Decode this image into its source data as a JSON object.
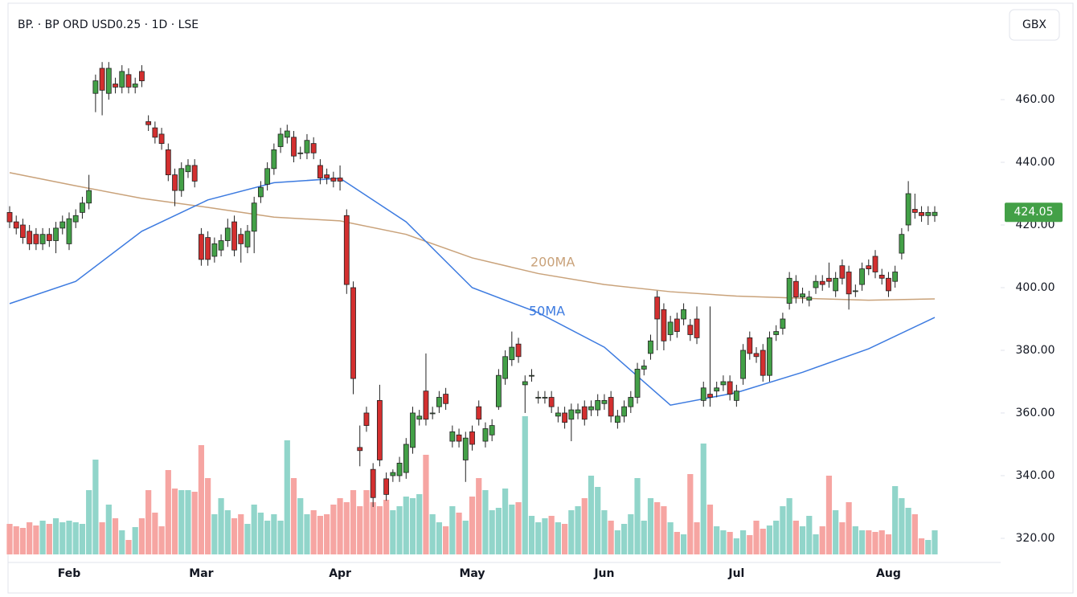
{
  "chart_data": {
    "type": "candlestick",
    "title": "BP. · BP ORD USD0.25 · 1D · LSE",
    "currency_button": "GBX",
    "categories": [
      null,
      null,
      null,
      null,
      null,
      null,
      null,
      null,
      null,
      "Feb",
      null,
      null,
      null,
      null,
      null,
      null,
      null,
      null,
      null,
      null,
      null,
      null,
      null,
      null,
      null,
      null,
      null,
      null,
      null,
      "Mar",
      null,
      null,
      null,
      null,
      null,
      null,
      null,
      null,
      null,
      null,
      null,
      null,
      null,
      null,
      null,
      null,
      null,
      null,
      null,
      null,
      "Apr",
      null,
      null,
      null,
      null,
      null,
      null,
      null,
      null,
      null,
      null,
      null,
      null,
      null,
      null,
      null,
      null,
      null,
      null,
      null,
      "May",
      null,
      null,
      null,
      null,
      null,
      null,
      null,
      null,
      null,
      null,
      null,
      null,
      null,
      null,
      null,
      null,
      null,
      null,
      null,
      "Jun",
      null,
      null,
      null,
      null,
      null,
      null,
      null,
      null,
      null,
      null,
      null,
      null,
      null,
      null,
      null,
      null,
      null,
      null,
      null,
      "Jul",
      null,
      null,
      null,
      null,
      null,
      null,
      null,
      null,
      null,
      null,
      null,
      null,
      null,
      null,
      null,
      null,
      null,
      null,
      null,
      null,
      null,
      null,
      "Aug",
      null,
      null,
      null,
      null,
      null,
      null,
      null
    ],
    "open": [
      424,
      421,
      420,
      418,
      417,
      414,
      417,
      415,
      419,
      414,
      421,
      424,
      427,
      462,
      470,
      462,
      465,
      464,
      468,
      464,
      469,
      453,
      451,
      449,
      444,
      436,
      431,
      437,
      439,
      417,
      416,
      410,
      412,
      415,
      421,
      417,
      413,
      418,
      429,
      433,
      438,
      445,
      448,
      448,
      443,
      443,
      446,
      439,
      436,
      435,
      435,
      423,
      400,
      349,
      360,
      342,
      364,
      339,
      340,
      340,
      341,
      349,
      358,
      367,
      360,
      362,
      366,
      351,
      353,
      345,
      354,
      362,
      351,
      353,
      362,
      371,
      377,
      382,
      369,
      372,
      365,
      365,
      365,
      359,
      360,
      358,
      360,
      362,
      361,
      361,
      363,
      365,
      357,
      359,
      362,
      365,
      374,
      379,
      397,
      393,
      385,
      390,
      390,
      388,
      390,
      364,
      366,
      367,
      369,
      370,
      364,
      371,
      384,
      379,
      380,
      372,
      385,
      387,
      395,
      402,
      397,
      396,
      400,
      402,
      403,
      399,
      407,
      405,
      399,
      401,
      407,
      410,
      404,
      403,
      402,
      411,
      420,
      425,
      424,
      423,
      423
    ],
    "high": [
      426,
      423,
      422,
      420,
      419,
      419,
      419,
      421,
      423,
      424,
      425,
      429,
      436,
      468,
      472,
      472,
      467,
      471,
      470,
      467,
      471,
      455,
      453,
      451,
      446,
      438,
      440,
      441,
      441,
      419,
      418,
      416,
      417,
      422,
      423,
      419,
      420,
      429,
      434,
      440,
      446,
      451,
      452,
      450,
      445,
      449,
      448,
      441,
      438,
      437,
      439,
      425,
      402,
      356,
      362,
      344,
      369,
      341,
      342,
      346,
      352,
      362,
      361,
      379,
      362,
      367,
      368,
      356,
      355,
      354,
      356,
      364,
      357,
      358,
      374,
      380,
      386,
      384,
      372,
      374,
      367,
      367,
      367,
      362,
      362,
      363,
      363,
      364,
      364,
      366,
      366,
      367,
      361,
      364,
      367,
      376,
      377,
      385,
      399,
      395,
      391,
      392,
      395,
      390,
      394,
      370,
      394,
      370,
      372,
      372,
      369,
      382,
      386,
      381,
      382,
      386,
      388,
      392,
      405,
      404,
      400,
      399,
      404,
      404,
      408,
      405,
      409,
      407,
      401,
      408,
      409,
      412,
      406,
      405,
      407,
      419,
      434,
      430,
      426,
      426,
      426
    ],
    "low": [
      419,
      417,
      414,
      412,
      412,
      412,
      413,
      411,
      417,
      412,
      419,
      422,
      425,
      456,
      455,
      460,
      462,
      462,
      462,
      462,
      464,
      450,
      446,
      444,
      434,
      426,
      429,
      435,
      432,
      407,
      407,
      408,
      410,
      413,
      410,
      408,
      411,
      411,
      427,
      431,
      436,
      443,
      446,
      440,
      441,
      441,
      441,
      433,
      433,
      432,
      431,
      398,
      366,
      343,
      354,
      330,
      343,
      332,
      338,
      338,
      339,
      347,
      356,
      356,
      358,
      360,
      361,
      349,
      349,
      338,
      348,
      356,
      349,
      351,
      361,
      369,
      375,
      376,
      360,
      370,
      363,
      363,
      360,
      357,
      355,
      351,
      358,
      356,
      359,
      359,
      361,
      357,
      355,
      357,
      360,
      363,
      372,
      377,
      380,
      380,
      383,
      384,
      388,
      383,
      382,
      362,
      362,
      365,
      367,
      364,
      362,
      369,
      377,
      376,
      370,
      370,
      383,
      385,
      393,
      395,
      395,
      394,
      398,
      399,
      400,
      397,
      401,
      393,
      397,
      399,
      404,
      403,
      401,
      397,
      400,
      409,
      418,
      422,
      421,
      420,
      421
    ],
    "close": [
      421,
      419,
      416,
      414,
      414,
      417,
      415,
      419,
      421,
      422,
      423,
      427,
      431,
      466,
      463,
      470,
      464,
      469,
      464,
      465,
      466,
      452,
      448,
      446,
      436,
      431,
      438,
      439,
      434,
      409,
      409,
      414,
      415,
      419,
      412,
      414,
      418,
      427,
      432,
      438,
      444,
      449,
      450,
      442,
      443,
      447,
      443,
      435,
      435,
      434,
      434,
      401,
      371,
      348,
      356,
      333,
      345,
      334,
      341,
      344,
      350,
      360,
      359,
      358,
      360,
      365,
      363,
      354,
      351,
      352,
      350,
      358,
      355,
      356,
      372,
      378,
      381,
      378,
      370,
      372,
      365,
      365,
      362,
      360,
      357,
      361,
      361,
      358,
      362,
      364,
      364,
      359,
      359,
      362,
      365,
      374,
      375,
      383,
      390,
      383,
      389,
      386,
      393,
      385,
      384,
      368,
      365,
      368,
      370,
      366,
      367,
      380,
      379,
      378,
      372,
      384,
      386,
      390,
      403,
      397,
      398,
      397,
      402,
      401,
      402,
      403,
      403,
      398,
      399,
      406,
      406,
      405,
      403,
      399,
      405,
      417,
      430,
      424,
      423,
      424,
      424.05
    ],
    "volume": [
      38,
      35,
      33,
      40,
      36,
      42,
      38,
      45,
      40,
      42,
      40,
      38,
      80,
      118,
      40,
      62,
      45,
      30,
      18,
      34,
      45,
      80,
      52,
      35,
      105,
      82,
      80,
      80,
      78,
      136,
      95,
      50,
      70,
      55,
      45,
      50,
      38,
      62,
      52,
      42,
      50,
      42,
      142,
      95,
      70,
      50,
      55,
      48,
      50,
      62,
      70,
      65,
      80,
      60,
      80,
      65,
      60,
      68,
      55,
      60,
      72,
      70,
      75,
      124,
      50,
      40,
      35,
      60,
      52,
      42,
      72,
      95,
      80,
      55,
      58,
      82,
      62,
      65,
      172,
      48,
      40,
      45,
      48,
      40,
      38,
      55,
      60,
      70,
      98,
      84,
      55,
      42,
      30,
      38,
      50,
      95,
      42,
      70,
      65,
      60,
      40,
      28,
      25,
      100,
      40,
      138,
      62,
      35,
      30,
      28,
      20,
      30,
      24,
      42,
      32,
      36,
      42,
      60,
      70,
      42,
      35,
      48,
      25,
      35,
      98,
      55,
      40,
      65,
      35,
      30,
      30,
      28,
      30,
      25,
      85,
      70,
      58,
      50,
      20,
      18,
      30
    ],
    "up_color": "#43a047",
    "down_color": "#d32f2f",
    "volume_up_color": "#91d5ca",
    "volume_down_color": "#f6a5a2",
    "series": [
      {
        "name": "200MA",
        "color": "#c9a27a",
        "x": [
          0,
          10,
          20,
          30,
          40,
          50,
          60,
          70,
          80,
          90,
          100,
          110,
          120,
          130,
          140
        ],
        "values": [
          436.7,
          432.5,
          428.5,
          425.6,
          422.5,
          421.3,
          417,
          409.5,
          404.5,
          401,
          398.7,
          397.3,
          396.6,
          396,
          396.4
        ]
      },
      {
        "name": "50MA",
        "color": "#3d7be0",
        "x": [
          0,
          10,
          20,
          30,
          40,
          50,
          60,
          70,
          80,
          90,
          100,
          110,
          120,
          130,
          140
        ],
        "values": [
          394.9,
          402,
          418,
          428,
          433.5,
          434.9,
          421,
          400,
          392,
          381,
          362.5,
          366.5,
          373,
          380.5,
          390.5
        ]
      }
    ],
    "ylim": [
      312.3,
      491.8
    ],
    "yticks": [
      {
        "value": 320,
        "label": "320.00"
      },
      {
        "value": 340,
        "label": "340.00"
      },
      {
        "value": 360,
        "label": "360.00"
      },
      {
        "value": 380,
        "label": "380.00"
      },
      {
        "value": 400,
        "label": "400.00"
      },
      {
        "value": 420,
        "label": "420.00"
      },
      {
        "value": 440,
        "label": "440.00"
      },
      {
        "value": 460,
        "label": "460.00"
      }
    ],
    "grid": false
  }
}
